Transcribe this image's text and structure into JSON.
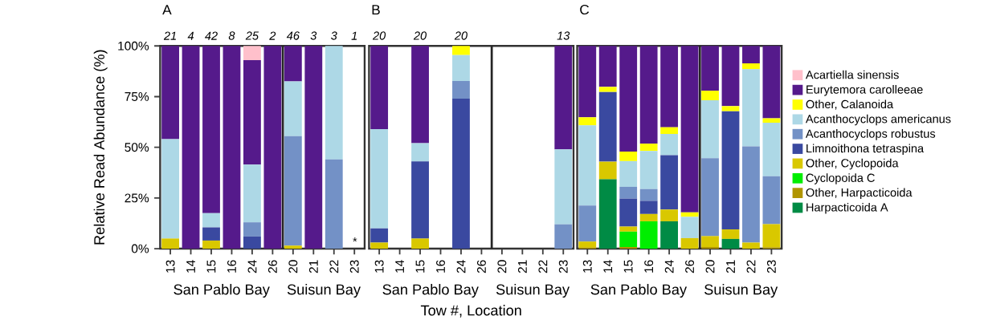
{
  "chart_data": [
    {
      "type": "bar",
      "stacked": true,
      "title": "A",
      "ylabel": "Relative Read Abundance (%)",
      "categories": [
        "13",
        "14",
        "15",
        "16",
        "24",
        "26",
        "20",
        "21",
        "22",
        "23"
      ],
      "ylim": [
        0,
        100
      ],
      "yticks": [
        {
          "value": 0,
          "label": "0%"
        },
        {
          "value": 25,
          "label": "25%"
        },
        {
          "value": 50,
          "label": "50%"
        },
        {
          "value": 75,
          "label": "75%"
        },
        {
          "value": 100,
          "label": "100%"
        }
      ],
      "legend": false,
      "annotations": [
        {
          "text": "21",
          "x": "13",
          "y": 100
        },
        {
          "text": "4",
          "x": "14",
          "y": 100
        },
        {
          "text": "42",
          "x": "15",
          "y": 100
        },
        {
          "text": "8",
          "x": "16",
          "y": 100
        },
        {
          "text": "25",
          "x": "24",
          "y": 100
        },
        {
          "text": "2",
          "x": "26",
          "y": 100
        },
        {
          "text": "46",
          "x": "20",
          "y": 100
        },
        {
          "text": "3",
          "x": "21",
          "y": 100
        },
        {
          "text": "3",
          "x": "22",
          "y": 100
        },
        "1",
        "*",
        "San Pablo Bay",
        "Suisun Bay"
      ],
      "series": [
        {
          "color": "#d9c800",
          "values": [
            5,
            0,
            4,
            0,
            0,
            0,
            1.5,
            0,
            0,
            null
          ]
        },
        {
          "color": "#3a49a0",
          "values": [
            0,
            0,
            6.5,
            0,
            6,
            0,
            0,
            0,
            0,
            null
          ]
        },
        {
          "color": "#7391c6",
          "values": [
            0,
            0,
            0,
            0,
            7,
            0,
            54,
            0,
            44,
            null
          ]
        },
        {
          "color": "#add8e6",
          "values": [
            49,
            0,
            7,
            0,
            28.5,
            0,
            27,
            0,
            56,
            null
          ]
        },
        {
          "color": "#551a8b",
          "values": [
            46,
            100,
            82.5,
            100,
            51.5,
            100,
            17.5,
            100,
            0,
            null
          ]
        },
        {
          "color": "#ffc0cb",
          "values": [
            0,
            0,
            0,
            0,
            7,
            0,
            0,
            0,
            0,
            null
          ]
        }
      ]
    },
    {
      "type": "bar",
      "stacked": true,
      "title": "B",
      "xlabel": "Tow #, Location",
      "categories": [
        "13",
        "14",
        "15",
        "16",
        "24",
        "26",
        "20",
        "21",
        "22",
        "23"
      ],
      "ylim": [
        0,
        100
      ],
      "tick_labels": "x",
      "legend": false,
      "annotations": [
        {
          "text": "20",
          "x": "13",
          "y": 100
        },
        {
          "text": "20",
          "x": "15",
          "y": 100
        },
        {
          "text": "20",
          "x": "24",
          "y": 100
        },
        {
          "text": "13",
          "x": "23",
          "y": 100
        },
        "San Pablo Bay",
        "Suisun Bay"
      ],
      "series": [
        {
          "color": "#d9c800",
          "values": [
            3,
            null,
            5,
            null,
            0,
            null,
            null,
            null,
            null,
            0
          ]
        },
        {
          "color": "#3a49a0",
          "values": [
            7,
            null,
            38,
            null,
            74,
            null,
            null,
            null,
            null,
            0
          ]
        },
        {
          "color": "#7391c6",
          "values": [
            0,
            null,
            0,
            null,
            8.7,
            null,
            null,
            null,
            null,
            12
          ]
        },
        {
          "color": "#add8e6",
          "values": [
            49,
            null,
            9,
            null,
            12.8,
            null,
            null,
            null,
            null,
            37
          ]
        },
        {
          "color": "#ffff00",
          "values": [
            0,
            null,
            0,
            null,
            4.5,
            null,
            null,
            null,
            null,
            0
          ]
        },
        {
          "color": "#551a8b",
          "values": [
            41,
            null,
            48,
            null,
            0,
            null,
            null,
            null,
            null,
            51
          ]
        }
      ]
    },
    {
      "type": "bar",
      "stacked": true,
      "title": "C",
      "categories": [
        "13",
        "14",
        "15",
        "16",
        "24",
        "26",
        "20",
        "21",
        "22",
        "23"
      ],
      "ylim": [
        0,
        100
      ],
      "tick_labels": "x",
      "legend": "right",
      "annotations": [
        "San Pablo Bay",
        "Suisun Bay"
      ],
      "series": [
        {
          "name": "Harpacticoida A",
          "color": "#008b45",
          "values": [
            0,
            34.2,
            0,
            0,
            13.5,
            0,
            0,
            4.8,
            0,
            0
          ]
        },
        {
          "name": "Other, Harpacticoida",
          "color": "#b09500",
          "values": [
            0.5,
            0,
            0.8,
            0,
            0,
            0,
            0.8,
            0,
            0,
            0.6
          ]
        },
        {
          "name": "Cyclopoida C",
          "color": "#00ee00",
          "values": [
            0,
            0,
            7.6,
            13.5,
            0,
            0,
            0,
            0,
            0,
            0
          ]
        },
        {
          "name": "Other, Cyclopoida",
          "color": "#d9c800",
          "values": [
            3,
            8.7,
            2.5,
            3.6,
            5.8,
            5.2,
            5.4,
            4.7,
            3,
            11.5
          ]
        },
        {
          "name": "Limnoithona tetraspina",
          "color": "#3a49a0",
          "values": [
            0,
            34.4,
            13.8,
            6.5,
            26.8,
            0,
            0,
            58.3,
            0,
            0
          ]
        },
        {
          "name": "Acanthocyclops robustus",
          "color": "#7391c6",
          "values": [
            17.8,
            0,
            5.8,
            5.8,
            0,
            0,
            38.4,
            0,
            47.5,
            23.6
          ]
        },
        {
          "name": "Acanthocyclops americanus",
          "color": "#add8e6",
          "values": [
            39.5,
            0,
            12.7,
            18.8,
            10.5,
            10.5,
            28.6,
            0,
            38,
            26.4
          ]
        },
        {
          "name": "Other, Calanoida",
          "color": "#ffff00",
          "values": [
            4,
            2.5,
            4.7,
            3.6,
            3.3,
            2.2,
            4.7,
            2.5,
            2.9,
            2.2
          ]
        },
        {
          "name": "Eurytemora carolleeae",
          "color": "#551a8b",
          "values": [
            35.2,
            20.2,
            52.1,
            48.2,
            40.1,
            82.1,
            22.1,
            29.7,
            8.6,
            35.7
          ]
        },
        {
          "name": "Acartiella sinensis",
          "color": "#ffc0cb",
          "values": [
            0,
            0,
            0,
            0,
            0,
            0,
            0,
            0,
            0,
            0
          ]
        }
      ]
    }
  ]
}
